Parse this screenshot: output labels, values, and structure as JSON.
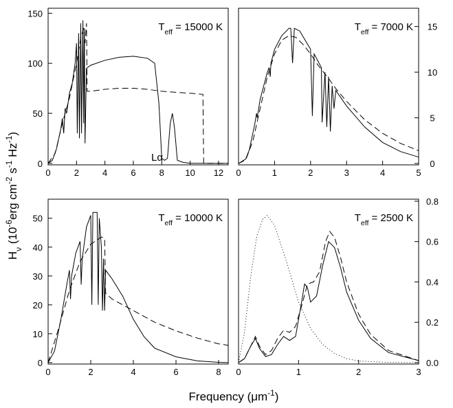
{
  "figure": {
    "y_label_parts": [
      {
        "text": "H",
        "pos": "base"
      },
      {
        "text": "ν",
        "pos": "sub"
      },
      {
        "text": " (10",
        "pos": "base"
      },
      {
        "text": "-6",
        "pos": "sup"
      },
      {
        "text": "erg cm",
        "pos": "base"
      },
      {
        "text": "-2",
        "pos": "sup"
      },
      {
        "text": " s",
        "pos": "base"
      },
      {
        "text": "-1",
        "pos": "sup"
      },
      {
        "text": " Hz",
        "pos": "base"
      },
      {
        "text": "-1",
        "pos": "sup"
      },
      {
        "text": ")",
        "pos": "base"
      }
    ],
    "x_label_parts": [
      {
        "text": "Frequency (μm",
        "pos": "base"
      },
      {
        "text": "-1",
        "pos": "sup"
      },
      {
        "text": ")",
        "pos": "base"
      }
    ]
  },
  "chart_data": [
    {
      "type": "line",
      "yaxis_side": "left",
      "annotation_parts": [
        {
          "text": "T",
          "pos": "base"
        },
        {
          "text": "eff",
          "pos": "sub"
        },
        {
          "text": " = 15000 K",
          "pos": "base"
        }
      ],
      "note": "Lα",
      "xlim": [
        0,
        12.68
      ],
      "ylim": [
        -1.5,
        155
      ],
      "xticks": [
        0,
        2,
        4,
        6,
        8,
        10,
        12
      ],
      "yticks": [
        0,
        50,
        100,
        150
      ],
      "series": [
        {
          "color": "#000000",
          "style": "solid",
          "x": [
            0,
            0.3,
            0.6,
            0.9,
            1.0,
            1.1,
            1.2,
            1.3,
            1.5,
            1.7,
            1.9,
            2.0,
            2.05,
            2.15,
            2.2,
            2.3,
            2.35,
            2.45,
            2.5,
            2.55,
            2.6,
            2.7,
            3,
            4,
            5,
            6,
            7,
            7.5,
            7.8,
            8.0,
            8.2,
            8.4,
            8.6,
            8.75,
            8.9,
            9.1,
            9.5,
            10,
            11,
            12.68
          ],
          "values": [
            0,
            3,
            15,
            35,
            45,
            30,
            55,
            50,
            70,
            80,
            100,
            120,
            30,
            130,
            25,
            140,
            30,
            143,
            40,
            135,
            20,
            95,
            98,
            103,
            106,
            107,
            105,
            100,
            60,
            5,
            3,
            5,
            40,
            50,
            35,
            3,
            1,
            0,
            0,
            0
          ]
        },
        {
          "color": "#000000",
          "style": "dashed",
          "x": [
            0,
            0.5,
            1,
            1.5,
            2,
            2.3,
            2.5,
            2.6,
            2.7,
            2.75,
            3,
            4,
            5,
            6,
            7,
            8,
            9,
            10,
            10.9,
            10.95,
            11.5,
            12.68
          ],
          "values": [
            0,
            10,
            40,
            65,
            100,
            125,
            135,
            120,
            140,
            72,
            72,
            74,
            75,
            75,
            74,
            72,
            71,
            70,
            69,
            0,
            0,
            0
          ]
        }
      ]
    },
    {
      "type": "line",
      "yaxis_side": "right",
      "annotation_parts": [
        {
          "text": "T",
          "pos": "base"
        },
        {
          "text": "eff",
          "pos": "sub"
        },
        {
          "text": " = 7000 K",
          "pos": "base"
        }
      ],
      "xlim": [
        0,
        5
      ],
      "ylim": [
        -0.15,
        17
      ],
      "xticks": [
        0,
        1,
        2,
        3,
        4,
        5
      ],
      "yticks": [
        0,
        5,
        10,
        15
      ],
      "series": [
        {
          "color": "#000000",
          "style": "solid",
          "x": [
            0,
            0.2,
            0.3,
            0.45,
            0.5,
            0.52,
            0.6,
            0.8,
            0.85,
            0.88,
            0.9,
            1.0,
            1.2,
            1.4,
            1.45,
            1.5,
            1.55,
            1.7,
            2.0,
            2.05,
            2.1,
            2.3,
            2.32,
            2.4,
            2.45,
            2.5,
            2.55,
            2.6,
            2.65,
            2.7,
            3,
            3.5,
            4,
            4.5,
            5
          ],
          "values": [
            0,
            0.5,
            1.5,
            4.3,
            5.5,
            5,
            7,
            10,
            10.5,
            9.5,
            11,
            12.5,
            14,
            14.8,
            14.8,
            11,
            14.8,
            14.5,
            12.5,
            5.2,
            12,
            10.5,
            4.5,
            10,
            4,
            9.5,
            3.5,
            8.5,
            6,
            8,
            6.3,
            4,
            2.3,
            1.3,
            0.7
          ]
        },
        {
          "color": "#000000",
          "style": "dashed",
          "x": [
            0,
            0.2,
            0.4,
            0.6,
            0.8,
            1.0,
            1.2,
            1.4,
            1.6,
            1.8,
            2,
            2.2,
            2.5,
            2.7,
            3,
            3.5,
            4,
            4.5,
            5
          ],
          "values": [
            0,
            0.4,
            2.5,
            6,
            9.5,
            12,
            13.5,
            14,
            13.8,
            13,
            12,
            10.8,
            9.3,
            8.2,
            6.8,
            4.8,
            3.3,
            2.2,
            1.4
          ]
        }
      ]
    },
    {
      "type": "line",
      "yaxis_side": "left",
      "annotation_parts": [
        {
          "text": "T",
          "pos": "base"
        },
        {
          "text": "eff",
          "pos": "sub"
        },
        {
          "text": " = 10000 K",
          "pos": "base"
        }
      ],
      "xlim": [
        0,
        8.45
      ],
      "ylim": [
        -0.5,
        56.6
      ],
      "xticks": [
        0,
        2,
        4,
        6,
        8
      ],
      "yticks": [
        0,
        10,
        20,
        30,
        40,
        50
      ],
      "series": [
        {
          "color": "#000000",
          "style": "solid",
          "x": [
            0,
            0.3,
            0.6,
            0.9,
            1.0,
            1.05,
            1.1,
            1.3,
            1.5,
            1.55,
            1.6,
            1.8,
            2.0,
            2.05,
            2.1,
            2.3,
            2.35,
            2.4,
            2.5,
            2.55,
            2.6,
            2.65,
            2.7,
            3,
            3.5,
            4,
            4.5,
            5,
            6,
            7,
            8,
            8.45
          ],
          "values": [
            0,
            4,
            15,
            28,
            32,
            22,
            30,
            38,
            42,
            27,
            36,
            47,
            51,
            20,
            52,
            52,
            20,
            50,
            40,
            18,
            36,
            18,
            32,
            29,
            23,
            15,
            9,
            5,
            2,
            0.6,
            0.1,
            0
          ]
        },
        {
          "color": "#000000",
          "style": "dashed",
          "x": [
            0,
            0.5,
            1,
            1.5,
            2,
            2.5,
            2.65,
            2.7,
            3,
            4,
            5,
            6,
            7,
            8,
            8.45
          ],
          "values": [
            0,
            12,
            25,
            35,
            41,
            43.5,
            43,
            24,
            22,
            18,
            14,
            11,
            8.5,
            6.5,
            6
          ]
        }
      ]
    },
    {
      "type": "line",
      "yaxis_side": "right",
      "annotation_parts": [
        {
          "text": "T",
          "pos": "base"
        },
        {
          "text": "eff",
          "pos": "sub"
        },
        {
          "text": " = 2500 K",
          "pos": "base"
        }
      ],
      "xlim": [
        0,
        3
      ],
      "ylim": [
        -0.007,
        0.81
      ],
      "xticks": [
        0,
        1,
        2,
        3
      ],
      "yticks": [
        {
          "value": 0,
          "label": "0.0"
        },
        0.2,
        0.4,
        0.6,
        0.8
      ],
      "series": [
        {
          "color": "#000000",
          "style": "solid",
          "x": [
            0,
            0.1,
            0.2,
            0.28,
            0.35,
            0.45,
            0.55,
            0.65,
            0.75,
            0.85,
            0.95,
            1.05,
            1.1,
            1.15,
            1.2,
            1.3,
            1.4,
            1.5,
            1.6,
            1.7,
            1.8,
            2,
            2.2,
            2.5,
            3
          ],
          "values": [
            0,
            0.02,
            0.08,
            0.12,
            0.07,
            0.03,
            0.04,
            0.09,
            0.13,
            0.11,
            0.13,
            0.3,
            0.39,
            0.37,
            0.3,
            0.33,
            0.48,
            0.6,
            0.57,
            0.47,
            0.35,
            0.21,
            0.12,
            0.05,
            0.01
          ]
        },
        {
          "color": "#000000",
          "style": "dashed",
          "x": [
            0,
            0.1,
            0.2,
            0.28,
            0.35,
            0.45,
            0.55,
            0.65,
            0.75,
            0.85,
            0.95,
            1.05,
            1.15,
            1.25,
            1.35,
            1.45,
            1.52,
            1.6,
            1.7,
            1.8,
            2,
            2.2,
            2.5,
            3
          ],
          "values": [
            0,
            0.02,
            0.08,
            0.13,
            0.08,
            0.04,
            0.06,
            0.12,
            0.16,
            0.15,
            0.18,
            0.28,
            0.39,
            0.4,
            0.45,
            0.6,
            0.65,
            0.62,
            0.52,
            0.4,
            0.24,
            0.14,
            0.06,
            0.01
          ]
        },
        {
          "color": "#000000",
          "style": "dotted",
          "x": [
            0,
            0.1,
            0.2,
            0.3,
            0.4,
            0.48,
            0.6,
            0.8,
            1.0,
            1.2,
            1.4,
            1.6,
            1.8,
            2,
            2.5,
            3
          ],
          "values": [
            0,
            0.15,
            0.42,
            0.62,
            0.71,
            0.73,
            0.68,
            0.5,
            0.3,
            0.17,
            0.09,
            0.045,
            0.02,
            0.008,
            0.001,
            0
          ]
        }
      ]
    }
  ]
}
